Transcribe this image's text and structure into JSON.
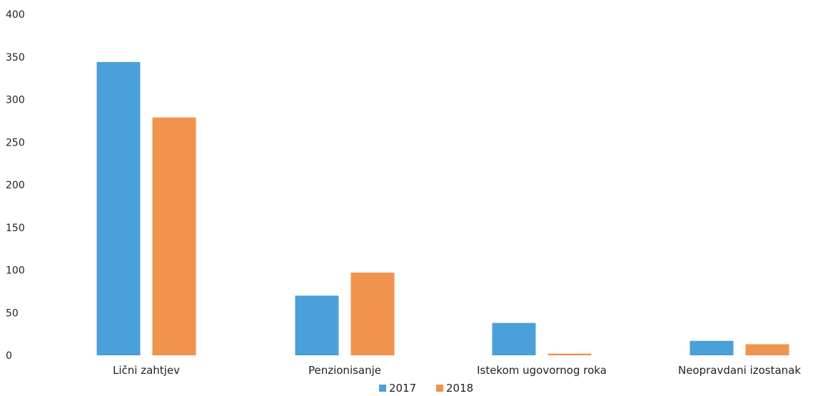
{
  "colors": {
    "series_2017": "#4aa0d8",
    "series_2018": "#f0934d"
  },
  "chart_data": {
    "type": "bar",
    "categories": [
      "Lični zahtjev",
      "Penzionisanje",
      "Istekom ugovornog roka",
      "Neopravdani izostanak"
    ],
    "series": [
      {
        "name": "2017",
        "values": [
          344,
          70,
          38,
          17
        ]
      },
      {
        "name": "2018",
        "values": [
          279,
          97,
          2,
          13
        ]
      }
    ],
    "yticks": [
      "0",
      "50",
      "100",
      "150",
      "200",
      "250",
      "300",
      "350",
      "400"
    ],
    "ylim": [
      0,
      400
    ],
    "grid": false,
    "legend_position": "bottom"
  }
}
